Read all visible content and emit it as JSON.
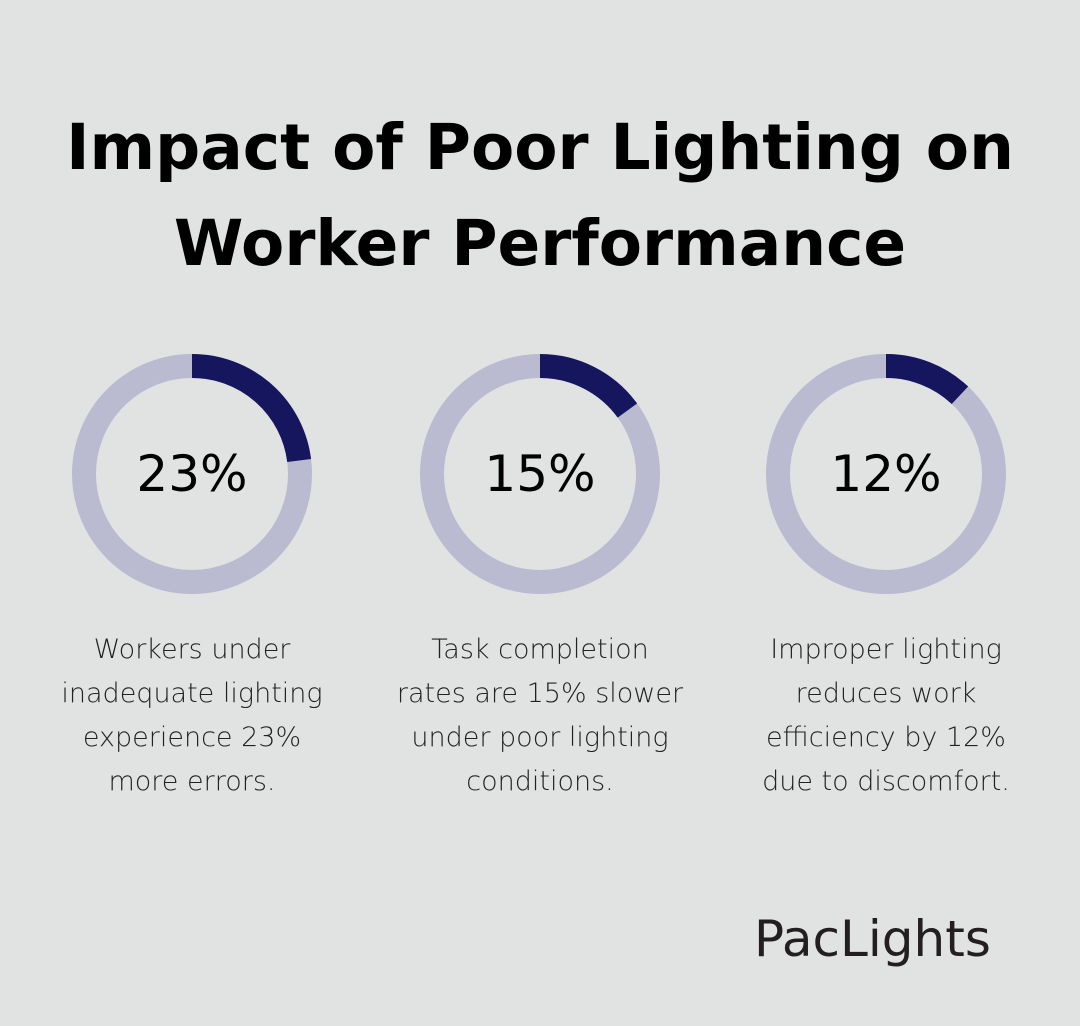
{
  "title": {
    "line1": "Impact of Poor Lighting on",
    "line2": "Worker Performance"
  },
  "colors": {
    "background": "#e1e3e2",
    "accent": "#16165e",
    "track": "#babad0"
  },
  "stats": [
    {
      "value": "23%",
      "percent": 23,
      "desc": [
        "Workers under",
        "inadequate lighting",
        "experience 23%",
        "more errors."
      ]
    },
    {
      "value": "15%",
      "percent": 15,
      "desc": [
        "Task completion",
        "rates are 15% slower",
        "under poor lighting",
        "conditions."
      ]
    },
    {
      "value": "12%",
      "percent": 12,
      "desc": [
        "Improper lighting",
        "reduces work",
        "efficiency by 12%",
        "due to discomfort."
      ]
    }
  ],
  "logo": "PacLights",
  "chart_data": {
    "type": "pie",
    "subtype": "donut-gauges",
    "title": "Impact of Poor Lighting on Worker Performance",
    "categories": [
      "More errors under inadequate lighting",
      "Slower task completion under poor lighting",
      "Reduced work efficiency due to discomfort"
    ],
    "values": [
      23,
      15,
      12
    ],
    "unit": "%",
    "max": 100,
    "legend": "none"
  }
}
